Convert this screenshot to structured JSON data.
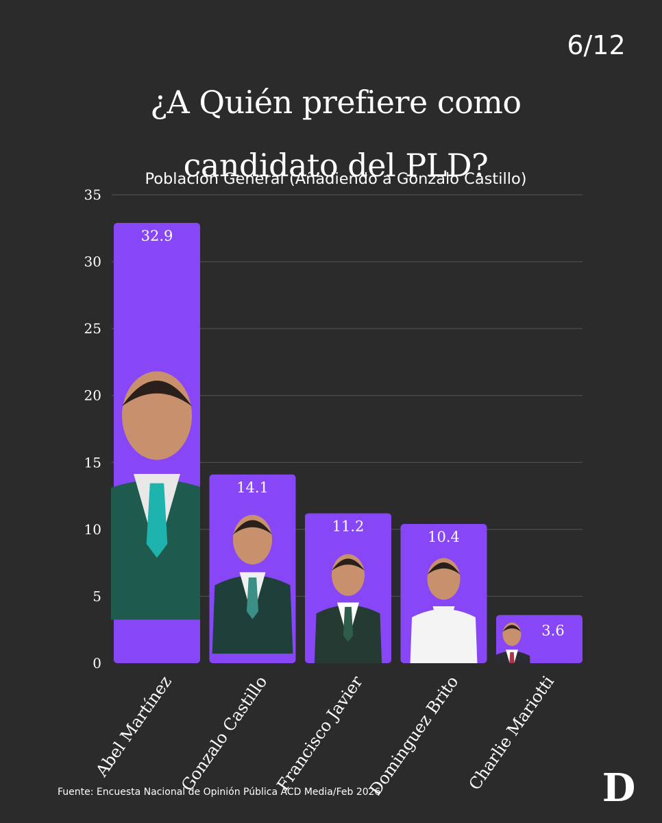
{
  "header": {
    "page_counter": "6/12",
    "title_line1": "¿A Quién prefiere como",
    "title_line2": "candidato del PLD?",
    "subtitle": "Población General (Añadiendo a Gonzalo Castillo)"
  },
  "footer": {
    "source": "Fuente: Encuesta Nacional de Opinión Pública ACD Media/Feb 2026",
    "logo": "D"
  },
  "colors": {
    "background": "#2b2b2c",
    "bar": "#8847f7",
    "text": "#ffffff",
    "grid": "#555555"
  },
  "chart_data": {
    "type": "bar",
    "title": "¿A Quién prefiere como candidato del PLD?",
    "subtitle": "Población General (Añadiendo a Gonzalo Castillo)",
    "categories": [
      "Abel Martínez",
      "Gonzalo Castillo",
      "Francisco Javier",
      "Dominguez Brito",
      "Charlie Mariotti"
    ],
    "values": [
      32.9,
      14.1,
      11.2,
      10.4,
      3.6
    ],
    "data_labels": [
      "32.9",
      "14.1",
      "11.2",
      "10.4",
      "3.6"
    ],
    "ylim": [
      0,
      35
    ],
    "yticks": [
      0,
      5,
      10,
      15,
      20,
      25,
      30,
      35
    ],
    "xlabel": "",
    "ylabel": "",
    "grid": true,
    "legend": "none"
  }
}
